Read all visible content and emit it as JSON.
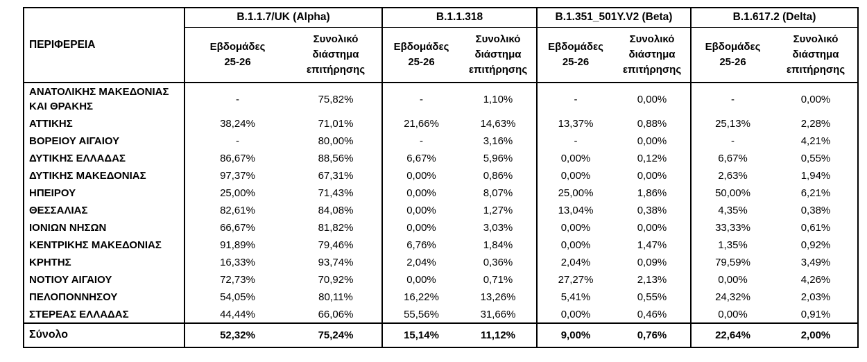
{
  "table": {
    "region_header": "ΠΕΡΙΦΕΡΕΙΑ",
    "groups": [
      {
        "label": "B.1.1.7/UK (Alpha)"
      },
      {
        "label": "B.1.1.318"
      },
      {
        "label": "B.1.351_501Y.V2 (Beta)"
      },
      {
        "label": "B.1.617.2 (Delta)"
      }
    ],
    "subheaders": {
      "weeks": "Εβδομάδες\n25-26",
      "total": "Συνολικό\nδιάστημα\nεπιτήρησης"
    },
    "rows": [
      {
        "region": "ΑΝΑΤΟΛΙΚΗΣ ΜΑΚΕΔΟΝΙΑΣ ΚΑΙ ΘΡΑΚΗΣ",
        "values": [
          "-",
          "75,82%",
          "-",
          "1,10%",
          "-",
          "0,00%",
          "-",
          "0,00%"
        ]
      },
      {
        "region": "ΑΤΤΙΚΗΣ",
        "values": [
          "38,24%",
          "71,01%",
          "21,66%",
          "14,63%",
          "13,37%",
          "0,88%",
          "25,13%",
          "2,28%"
        ]
      },
      {
        "region": "ΒΟΡΕΙΟΥ ΑΙΓΑΙΟΥ",
        "values": [
          "-",
          "80,00%",
          "-",
          "3,16%",
          "-",
          "0,00%",
          "-",
          "4,21%"
        ]
      },
      {
        "region": "ΔΥΤΙΚΗΣ ΕΛΛΑΔΑΣ",
        "values": [
          "86,67%",
          "88,56%",
          "6,67%",
          "5,96%",
          "0,00%",
          "0,12%",
          "6,67%",
          "0,55%"
        ]
      },
      {
        "region": "ΔΥΤΙΚΗΣ ΜΑΚΕΔΟΝΙΑΣ",
        "values": [
          "97,37%",
          "67,31%",
          "0,00%",
          "0,86%",
          "0,00%",
          "0,00%",
          "2,63%",
          "1,94%"
        ]
      },
      {
        "region": "ΗΠΕΙΡΟΥ",
        "values": [
          "25,00%",
          "71,43%",
          "0,00%",
          "8,07%",
          "25,00%",
          "1,86%",
          "50,00%",
          "6,21%"
        ]
      },
      {
        "region": "ΘΕΣΣΑΛΙΑΣ",
        "values": [
          "82,61%",
          "84,08%",
          "0,00%",
          "1,27%",
          "13,04%",
          "0,38%",
          "4,35%",
          "0,38%"
        ]
      },
      {
        "region": "ΙΟΝΙΩΝ ΝΗΣΩΝ",
        "values": [
          "66,67%",
          "81,82%",
          "0,00%",
          "3,03%",
          "0,00%",
          "0,00%",
          "33,33%",
          "0,61%"
        ]
      },
      {
        "region": "ΚΕΝΤΡΙΚΗΣ ΜΑΚΕΔΟΝΙΑΣ",
        "values": [
          "91,89%",
          "79,46%",
          "6,76%",
          "1,84%",
          "0,00%",
          "1,47%",
          "1,35%",
          "0,92%"
        ]
      },
      {
        "region": "ΚΡΗΤΗΣ",
        "values": [
          "16,33%",
          "93,74%",
          "2,04%",
          "0,36%",
          "2,04%",
          "0,09%",
          "79,59%",
          "3,49%"
        ]
      },
      {
        "region": "ΝΟΤΙΟΥ ΑΙΓΑΙΟΥ",
        "values": [
          "72,73%",
          "70,92%",
          "0,00%",
          "0,71%",
          "27,27%",
          "2,13%",
          "0,00%",
          "4,26%"
        ]
      },
      {
        "region": "ΠΕΛΟΠΟΝΝΗΣΟΥ",
        "values": [
          "54,05%",
          "80,11%",
          "16,22%",
          "13,26%",
          "5,41%",
          "0,55%",
          "24,32%",
          "2,03%"
        ]
      },
      {
        "region": "ΣΤΕΡΕΑΣ ΕΛΛΑΔΑΣ",
        "values": [
          "44,44%",
          "66,06%",
          "55,56%",
          "31,66%",
          "0,00%",
          "0,46%",
          "0,00%",
          "0,91%"
        ]
      }
    ],
    "total_row": {
      "region": "Σύνολο",
      "values": [
        "52,32%",
        "75,24%",
        "15,14%",
        "11,12%",
        "9,00%",
        "0,76%",
        "22,64%",
        "2,00%"
      ]
    },
    "colors": {
      "border": "#000000",
      "text": "#000000",
      "background": "#ffffff"
    }
  }
}
